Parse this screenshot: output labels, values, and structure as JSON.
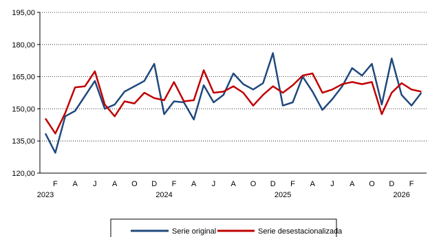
{
  "chart_data": {
    "type": "line",
    "title": "",
    "xlabel": "",
    "ylabel": "",
    "ylim": [
      120,
      195
    ],
    "yticks": [
      "120,00",
      "135,00",
      "150,00",
      "165,00",
      "180,00",
      "195,00"
    ],
    "ytick_values": [
      120,
      135,
      150,
      165,
      180,
      195
    ],
    "grid": "horizontal",
    "legend_placement": "bottom-center",
    "x_month_labels": [
      "",
      "F",
      "",
      "A",
      "",
      "J",
      "",
      "A",
      "",
      "O",
      "",
      "D",
      "",
      "F",
      "",
      "A",
      "",
      "J",
      "",
      "A",
      "",
      "O",
      "",
      "D",
      "",
      "F",
      "",
      "A",
      "",
      "J",
      "",
      "A",
      "",
      "O",
      "",
      "D",
      "",
      "F",
      ""
    ],
    "x_year_labels": [
      {
        "index": 0,
        "label": "2023"
      },
      {
        "index": 12,
        "label": "2024"
      },
      {
        "index": 24,
        "label": "2025"
      },
      {
        "index": 36,
        "label": "2026"
      }
    ],
    "series": [
      {
        "name": "Serie original",
        "color": "#1f497d",
        "values": [
          138.5,
          129.5,
          146.5,
          149,
          156,
          163,
          150,
          152,
          158,
          160.5,
          163,
          171,
          147.5,
          153.5,
          153,
          145,
          161,
          153,
          156.5,
          166.5,
          161.5,
          159,
          162,
          176,
          151.5,
          153,
          165,
          158,
          149.5,
          154.5,
          160.5,
          169,
          165.5,
          171,
          152,
          173.5,
          156.5,
          151.5,
          157.5
        ]
      },
      {
        "name": "Serie desestacionalizada",
        "color": "#c00000",
        "values": [
          145.5,
          138.5,
          148,
          160,
          160.5,
          167.5,
          152,
          146.5,
          153.5,
          152.5,
          157.5,
          155,
          154,
          162.5,
          153.5,
          154,
          168,
          157.5,
          158,
          160.5,
          157.5,
          151.5,
          156.5,
          160.5,
          157.5,
          161,
          165.5,
          166.5,
          157.5,
          159,
          161.5,
          162.5,
          161.5,
          162.5,
          147.5,
          157.5,
          162,
          159,
          158
        ]
      }
    ]
  }
}
